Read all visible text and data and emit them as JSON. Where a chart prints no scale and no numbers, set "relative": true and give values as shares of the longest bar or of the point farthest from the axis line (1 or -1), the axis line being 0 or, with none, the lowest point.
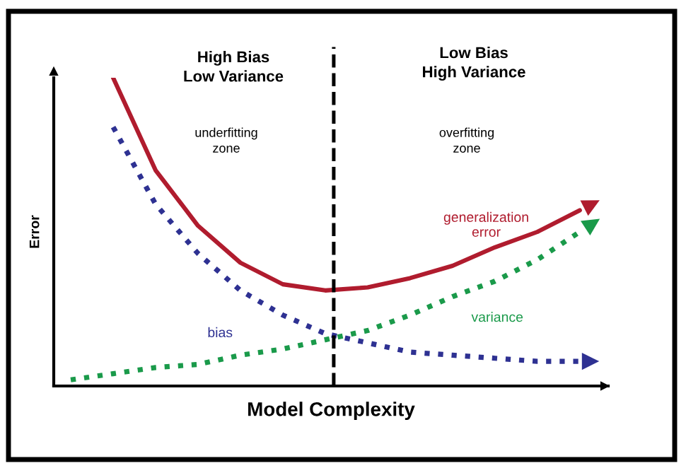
{
  "chart_data": {
    "type": "line",
    "relative": true,
    "xlabel": "Model Complexity",
    "ylabel": "Error",
    "categories": [
      null,
      null,
      null,
      null,
      null,
      null,
      null,
      null,
      null,
      null,
      null,
      null,
      null
    ],
    "series": [
      {
        "name": "generalization error",
        "color": "#b01c2e",
        "line_style": "solid",
        "values": [
          null,
          1.0,
          0.7,
          0.52,
          0.4,
          0.33,
          0.31,
          0.32,
          0.35,
          0.39,
          0.45,
          0.5,
          0.57
        ]
      },
      {
        "name": "bias",
        "color": "#2e3192",
        "line_style": "dotted",
        "values": [
          null,
          0.84,
          0.59,
          0.43,
          0.31,
          0.23,
          0.17,
          0.14,
          0.11,
          0.1,
          0.09,
          0.08,
          0.08
        ]
      },
      {
        "name": "variance",
        "color": "#1a9a4a",
        "line_style": "dotted",
        "values": [
          0.02,
          0.04,
          0.06,
          0.07,
          0.1,
          0.12,
          0.15,
          0.18,
          0.23,
          0.29,
          0.34,
          0.41,
          0.5
        ]
      }
    ],
    "annotations": [
      "High Bias\nLow Variance",
      "Low Bias\nHigh Variance",
      "underfitting\nzone",
      "overfitting\nzone"
    ]
  }
}
